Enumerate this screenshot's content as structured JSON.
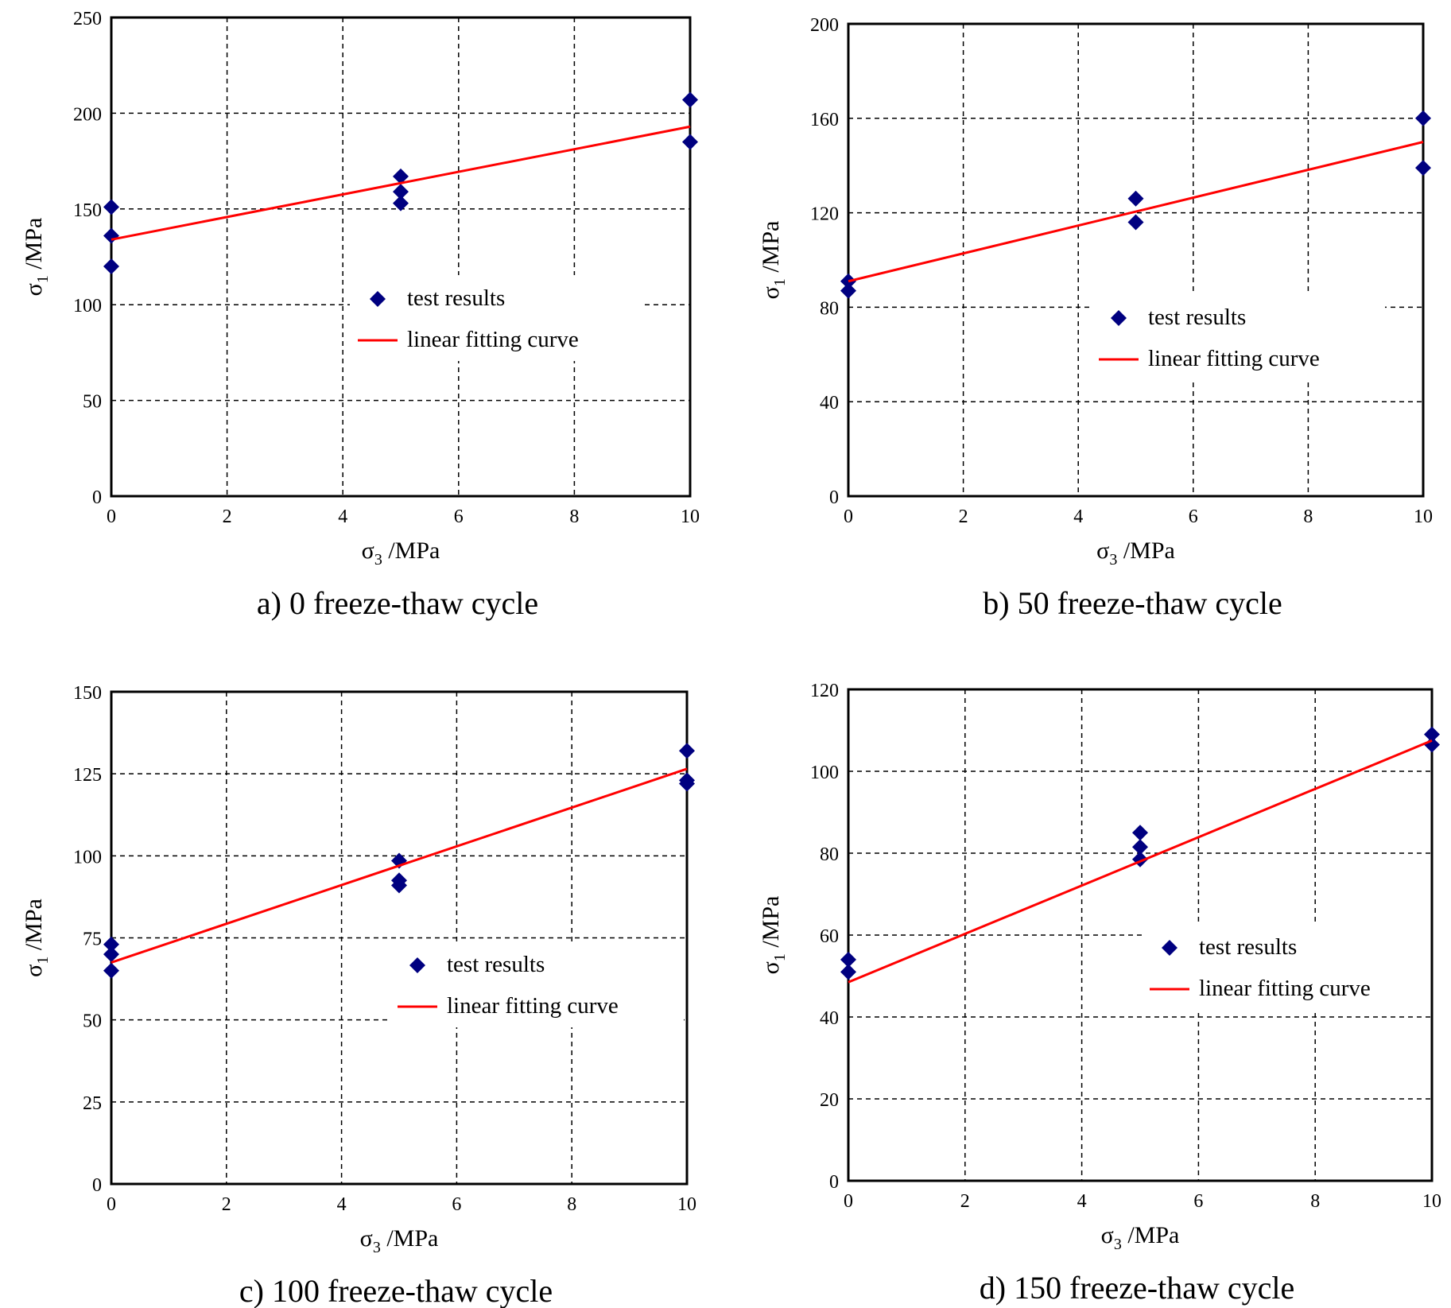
{
  "chart_data": [
    {
      "type": "scatter",
      "caption": "a) 0 freeze-thaw cycle",
      "xlabel": "σ3 /MPa",
      "ylabel": "σ1 /MPa",
      "xlim": [
        0,
        10
      ],
      "ylim": [
        0,
        250
      ],
      "xticks": [
        0,
        2,
        4,
        6,
        8,
        10
      ],
      "yticks": [
        0,
        50,
        100,
        150,
        200,
        250
      ],
      "grid": true,
      "legend_position": "center-right",
      "series": [
        {
          "name": "test results",
          "kind": "marker",
          "color": "#000080",
          "points": [
            [
              0,
              151
            ],
            [
              0,
              136
            ],
            [
              0,
              120
            ],
            [
              5,
              167
            ],
            [
              5,
              159
            ],
            [
              5,
              153
            ],
            [
              10,
              207
            ],
            [
              10,
              185
            ]
          ]
        },
        {
          "name": "linear fitting curve",
          "kind": "line",
          "color": "#ff0000",
          "points": [
            [
              0,
              134
            ],
            [
              10,
              193
            ]
          ]
        }
      ]
    },
    {
      "type": "scatter",
      "caption": "b) 50 freeze-thaw cycle",
      "xlabel": "σ3 /MPa",
      "ylabel": "σ1 /MPa",
      "xlim": [
        0,
        10
      ],
      "ylim": [
        0,
        200
      ],
      "xticks": [
        0,
        2,
        4,
        6,
        8,
        10
      ],
      "yticks": [
        0,
        40,
        80,
        120,
        160,
        200
      ],
      "grid": true,
      "legend_position": "center-right",
      "series": [
        {
          "name": "test results",
          "kind": "marker",
          "color": "#000080",
          "points": [
            [
              0,
              91
            ],
            [
              0,
              87
            ],
            [
              5,
              126
            ],
            [
              5,
              116
            ],
            [
              10,
              160
            ],
            [
              10,
              139
            ]
          ]
        },
        {
          "name": "linear fitting curve",
          "kind": "line",
          "color": "#ff0000",
          "points": [
            [
              0,
              91
            ],
            [
              10,
              150
            ]
          ]
        }
      ]
    },
    {
      "type": "scatter",
      "caption": "c) 100 freeze-thaw cycle",
      "xlabel": "σ3 /MPa",
      "ylabel": "σ1 /MPa",
      "xlim": [
        0,
        10
      ],
      "ylim": [
        0,
        150
      ],
      "xticks": [
        0,
        2,
        4,
        6,
        8,
        10
      ],
      "yticks": [
        0,
        25,
        50,
        75,
        100,
        125,
        150
      ],
      "grid": true,
      "legend_position": "center-right",
      "series": [
        {
          "name": "test results",
          "kind": "marker",
          "color": "#000080",
          "points": [
            [
              0,
              73
            ],
            [
              0,
              70
            ],
            [
              0,
              65
            ],
            [
              5,
              98.5
            ],
            [
              5,
              92.5
            ],
            [
              5,
              91
            ],
            [
              10,
              132
            ],
            [
              10,
              123
            ],
            [
              10,
              122
            ]
          ]
        },
        {
          "name": "linear fitting curve",
          "kind": "line",
          "color": "#ff0000",
          "points": [
            [
              0,
              67.5
            ],
            [
              10,
              126.5
            ]
          ]
        }
      ]
    },
    {
      "type": "scatter",
      "caption": "d) 150 freeze-thaw cycle",
      "xlabel": "σ3 /MPa",
      "ylabel": "σ1 /MPa",
      "xlim": [
        0,
        10
      ],
      "ylim": [
        0,
        120
      ],
      "xticks": [
        0,
        2,
        4,
        6,
        8,
        10
      ],
      "yticks": [
        0,
        20,
        40,
        60,
        80,
        100,
        120
      ],
      "grid": true,
      "legend_position": "center-right",
      "series": [
        {
          "name": "test results",
          "kind": "marker",
          "color": "#000080",
          "points": [
            [
              0,
              54
            ],
            [
              0,
              51
            ],
            [
              5,
              85
            ],
            [
              5,
              81.5
            ],
            [
              5,
              78.5
            ],
            [
              10,
              109
            ],
            [
              10,
              106.5
            ]
          ]
        },
        {
          "name": "linear fitting curve",
          "kind": "line",
          "color": "#ff0000",
          "points": [
            [
              0,
              48.5
            ],
            [
              10,
              107.5
            ]
          ]
        }
      ]
    }
  ]
}
